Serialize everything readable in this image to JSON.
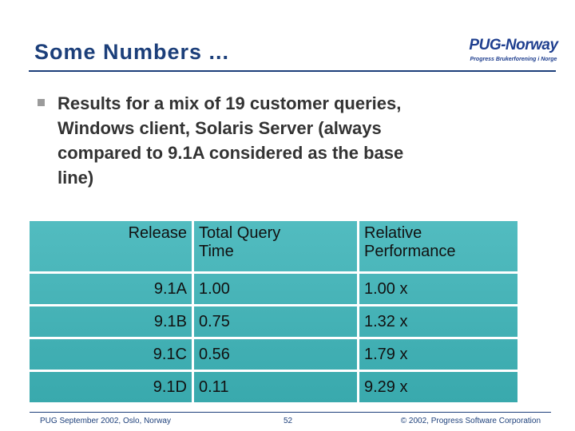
{
  "header": {
    "title": "Some Numbers ...",
    "logo": {
      "name": "PUG-Norway",
      "tagline": "Progress Brukerforening i Norge"
    }
  },
  "bullet": {
    "lines": [
      "Results for a mix of 19 customer queries,",
      "Windows client, Solaris Server (always",
      "compared to 9.1A considered as the base",
      "line)"
    ]
  },
  "table": {
    "columns": [
      "Release",
      "Total Query Time",
      "Relative Performance"
    ],
    "rows": [
      [
        "9.1A",
        "1.00",
        "1.00 x"
      ],
      [
        "9.1B",
        "0.75",
        "1.32 x"
      ],
      [
        "9.1C",
        "0.56",
        "1.79 x"
      ],
      [
        "9.1D",
        "0.11",
        "9.29 x"
      ]
    ]
  },
  "footer": {
    "left": "PUG September 2002, Oslo, Norway",
    "page": "52",
    "right": "© 2002, Progress Software Corporation"
  }
}
